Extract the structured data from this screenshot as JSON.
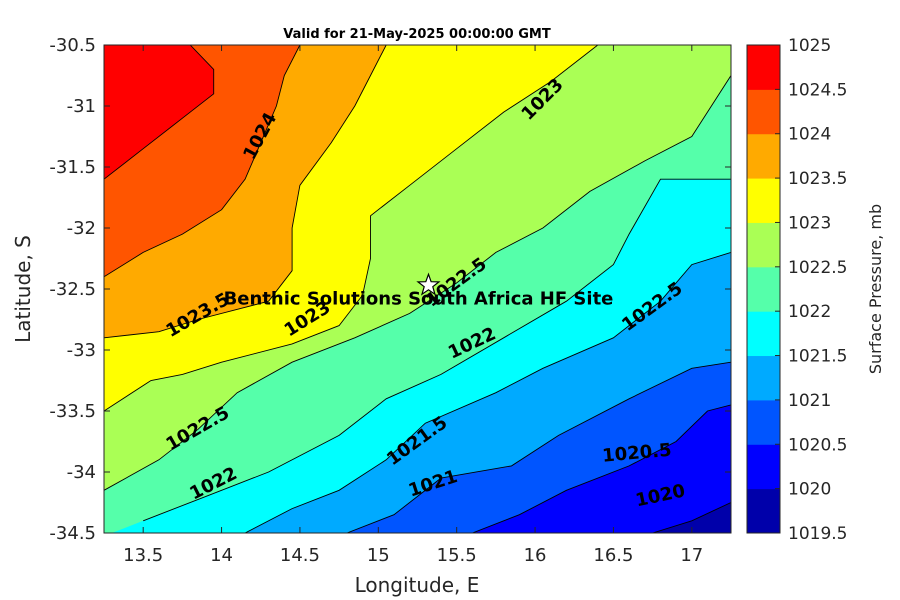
{
  "chart_data": {
    "type": "contour",
    "title": "Valid for 21-May-2025 00:00:00 GMT",
    "xlabel": "Longitude, E",
    "ylabel": "Latitude, S",
    "xlim": [
      13.25,
      17.25
    ],
    "ylim": [
      -34.5,
      -30.5
    ],
    "xticks": [
      "13.5",
      "14",
      "14.5",
      "15",
      "15.5",
      "16",
      "16.5",
      "17"
    ],
    "xtick_values": [
      13.5,
      14,
      14.5,
      15,
      15.5,
      16,
      16.5,
      17
    ],
    "yticks": [
      "-30.5",
      "-31",
      "-31.5",
      "-32",
      "-32.5",
      "-33",
      "-33.5",
      "-34",
      "-34.5"
    ],
    "ytick_values": [
      -30.5,
      -31,
      -31.5,
      -32,
      -32.5,
      -33,
      -33.5,
      -34,
      -34.5
    ],
    "colorbar": {
      "label": "Surface Pressure, mb",
      "levels": [
        1019.5,
        1020,
        1020.5,
        1021,
        1021.5,
        1022,
        1022.5,
        1023,
        1023.5,
        1024,
        1024.5,
        1025
      ],
      "tick_labels": [
        "1019.5",
        "1020",
        "1020.5",
        "1021",
        "1021.5",
        "1022",
        "1022.5",
        "1023",
        "1023.5",
        "1024",
        "1024.5",
        "1025"
      ],
      "colors": [
        "#0000aa",
        "#0000ff",
        "#0055ff",
        "#00aaff",
        "#00ffff",
        "#55ffaa",
        "#aaff55",
        "#ffff00",
        "#ffaa00",
        "#ff5500",
        "#ff0000",
        "#aa0000"
      ]
    },
    "contours": [
      {
        "level": 1020,
        "label": "1020",
        "points": [
          [
            16.75,
            -34.5
          ],
          [
            17.0,
            -34.4
          ],
          [
            17.25,
            -34.25
          ]
        ]
      },
      {
        "level": 1020.5,
        "label": "1020.5",
        "points": [
          [
            15.6,
            -34.5
          ],
          [
            15.9,
            -34.35
          ],
          [
            16.2,
            -34.15
          ],
          [
            16.6,
            -33.95
          ],
          [
            16.9,
            -33.75
          ],
          [
            17.1,
            -33.5
          ],
          [
            17.25,
            -33.45
          ]
        ]
      },
      {
        "level": 1021,
        "label": "1021",
        "points": [
          [
            14.8,
            -34.5
          ],
          [
            15.1,
            -34.35
          ],
          [
            15.4,
            -34.05
          ],
          [
            15.85,
            -33.95
          ],
          [
            16.15,
            -33.7
          ],
          [
            16.6,
            -33.4
          ],
          [
            17.0,
            -33.15
          ],
          [
            17.25,
            -33.1
          ]
        ]
      },
      {
        "level": 1021.5,
        "label": "1021.5",
        "points": [
          [
            14.15,
            -34.5
          ],
          [
            14.45,
            -34.3
          ],
          [
            14.75,
            -34.15
          ],
          [
            15.05,
            -33.9
          ],
          [
            15.3,
            -33.6
          ],
          [
            15.75,
            -33.35
          ],
          [
            16.05,
            -33.15
          ],
          [
            16.5,
            -32.9
          ],
          [
            16.8,
            -32.6
          ],
          [
            17.0,
            -32.3
          ],
          [
            17.25,
            -32.2
          ]
        ]
      },
      {
        "level": 1022,
        "label": "1022",
        "points": [
          [
            13.5,
            -34.4
          ],
          [
            13.9,
            -34.2
          ],
          [
            14.3,
            -34.0
          ],
          [
            14.75,
            -33.7
          ],
          [
            15.05,
            -33.4
          ],
          [
            15.4,
            -33.2
          ],
          [
            15.8,
            -32.9
          ],
          [
            16.2,
            -32.6
          ],
          [
            16.5,
            -32.3
          ],
          [
            16.6,
            -32.05
          ],
          [
            16.8,
            -31.6
          ],
          [
            17.25,
            -31.6
          ]
        ]
      },
      {
        "level": 1022.5,
        "label": "1022.5",
        "points": [
          [
            13.25,
            -34.15
          ],
          [
            13.6,
            -33.9
          ],
          [
            13.85,
            -33.65
          ],
          [
            14.1,
            -33.35
          ],
          [
            14.45,
            -33.1
          ],
          [
            14.85,
            -32.9
          ],
          [
            15.2,
            -32.7
          ],
          [
            15.5,
            -32.45
          ],
          [
            15.75,
            -32.2
          ],
          [
            16.05,
            -32.0
          ],
          [
            16.35,
            -31.7
          ],
          [
            16.7,
            -31.45
          ],
          [
            17.0,
            -31.25
          ],
          [
            17.25,
            -30.75
          ]
        ]
      },
      {
        "level": 1023,
        "label": "1023",
        "points": [
          [
            13.25,
            -33.5
          ],
          [
            13.55,
            -33.25
          ],
          [
            13.75,
            -33.2
          ],
          [
            14.0,
            -33.1
          ],
          [
            14.45,
            -32.95
          ],
          [
            14.75,
            -32.8
          ],
          [
            14.9,
            -32.55
          ],
          [
            14.95,
            -32.25
          ],
          [
            14.95,
            -31.9
          ],
          [
            15.2,
            -31.65
          ],
          [
            15.5,
            -31.35
          ],
          [
            15.8,
            -31.05
          ],
          [
            16.1,
            -30.8
          ],
          [
            16.4,
            -30.5
          ]
        ]
      },
      {
        "level": 1023.5,
        "label": "1023.5",
        "points": [
          [
            13.25,
            -32.9
          ],
          [
            13.6,
            -32.85
          ],
          [
            13.85,
            -32.75
          ],
          [
            14.3,
            -32.6
          ],
          [
            14.45,
            -32.35
          ],
          [
            14.45,
            -32.0
          ],
          [
            14.5,
            -31.65
          ],
          [
            14.7,
            -31.3
          ],
          [
            14.85,
            -31.0
          ],
          [
            14.95,
            -30.75
          ],
          [
            15.05,
            -30.5
          ]
        ]
      },
      {
        "level": 1024,
        "label": "1024",
        "points": [
          [
            13.25,
            -32.4
          ],
          [
            13.5,
            -32.2
          ],
          [
            13.75,
            -32.05
          ],
          [
            14.0,
            -31.85
          ],
          [
            14.15,
            -31.6
          ],
          [
            14.25,
            -31.3
          ],
          [
            14.35,
            -31.0
          ],
          [
            14.4,
            -30.75
          ],
          [
            14.5,
            -30.5
          ]
        ]
      },
      {
        "level": 1024.5,
        "label": "1024.5",
        "points": [
          [
            13.25,
            -31.6
          ],
          [
            13.5,
            -31.35
          ],
          [
            13.75,
            -31.1
          ],
          [
            13.95,
            -30.9
          ],
          [
            13.95,
            -30.7
          ],
          [
            13.8,
            -30.5
          ]
        ]
      }
    ],
    "contour_labels": [
      {
        "text": "1024",
        "lon": 14.25,
        "lat": -31.25,
        "angle": -62
      },
      {
        "text": "1023",
        "lon": 16.05,
        "lat": -30.95,
        "angle": -45
      },
      {
        "text": "1022.5",
        "lon": 15.5,
        "lat": -32.45,
        "angle": -36
      },
      {
        "text": "1023",
        "lon": 14.55,
        "lat": -32.75,
        "angle": -32
      },
      {
        "text": "1023.5",
        "lon": 13.85,
        "lat": -32.72,
        "angle": -30
      },
      {
        "text": "1022.5",
        "lon": 16.75,
        "lat": -32.65,
        "angle": -36
      },
      {
        "text": "1022",
        "lon": 15.6,
        "lat": -32.95,
        "angle": -25
      },
      {
        "text": "1022.5",
        "lon": 13.85,
        "lat": -33.65,
        "angle": -30
      },
      {
        "text": "1022",
        "lon": 13.95,
        "lat": -34.1,
        "angle": -27
      },
      {
        "text": "1021.5",
        "lon": 15.25,
        "lat": -33.75,
        "angle": -36
      },
      {
        "text": "1021",
        "lon": 15.35,
        "lat": -34.1,
        "angle": -18
      },
      {
        "text": "1020.5",
        "lon": 16.65,
        "lat": -33.85,
        "angle": -5
      },
      {
        "text": "1020",
        "lon": 16.8,
        "lat": -34.2,
        "angle": -12
      }
    ],
    "site": {
      "name": "Benthic Solutions South Africa HF Site",
      "lon": 15.32,
      "lat": -32.47
    }
  }
}
